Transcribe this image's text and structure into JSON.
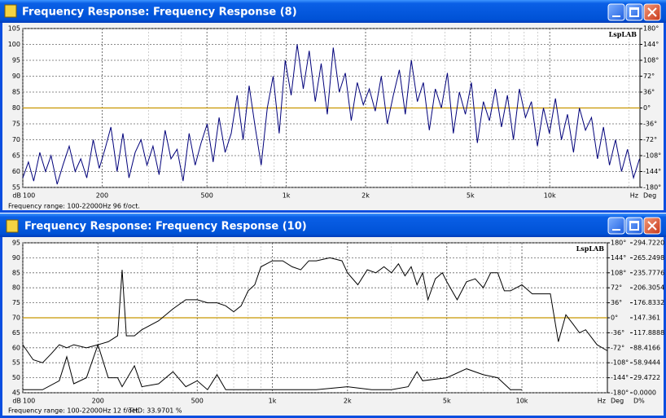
{
  "windows": [
    {
      "title": "Frequency Response: Frequency Response (8)"
    },
    {
      "title": "Frequency Response: Frequency Response (10)"
    }
  ],
  "chart_data": [
    {
      "type": "line",
      "xscale": "log",
      "xlim": [
        100,
        22000
      ],
      "xticks": [
        100,
        200,
        500,
        {
          "value": 1000,
          "label": "1k"
        },
        {
          "value": 2000,
          "label": "2k"
        },
        {
          "value": 5000,
          "label": "5k"
        },
        {
          "value": 10000,
          "label": "10k"
        }
      ],
      "ylim": [
        55,
        105
      ],
      "yticks": [
        55,
        60,
        65,
        70,
        75,
        80,
        85,
        90,
        95,
        100,
        105
      ],
      "y2lim": [
        -180,
        180
      ],
      "y2ticks": [
        {
          "value": -180,
          "label": "-180°"
        },
        {
          "value": -144,
          "label": "-144°"
        },
        {
          "value": -108,
          "label": "-108°"
        },
        {
          "value": -72,
          "label": "-72°"
        },
        {
          "value": -36,
          "label": "-36°"
        },
        {
          "value": 0,
          "label": "0°"
        },
        {
          "value": 36,
          "label": "36°"
        },
        {
          "value": 72,
          "label": "72°"
        },
        {
          "value": 108,
          "label": "108°"
        },
        {
          "value": 144,
          "label": "144°"
        },
        {
          "value": 180,
          "label": "180°"
        }
      ],
      "x_unit": "Hz",
      "y_unit": "dB",
      "y2_unit": "Deg",
      "y2_unit_color": "#d08000",
      "grid": true,
      "reference_line": {
        "axis": "y2",
        "value": 0,
        "color": "#c89600"
      },
      "watermark": "LspLAB",
      "footer": "Frequency range: 100-22000Hz  96 f/oct.",
      "series": [
        {
          "color": "#00007a",
          "x": [
            100,
            105,
            110,
            116,
            122,
            128,
            135,
            142,
            150,
            158,
            166,
            175,
            185,
            195,
            205,
            216,
            228,
            240,
            253,
            267,
            281,
            296,
            312,
            329,
            347,
            365,
            385,
            406,
            428,
            451,
            475,
            501,
            528,
            556,
            586,
            618,
            651,
            686,
            723,
            762,
            803,
            847,
            892,
            940,
            991,
            1044,
            1100,
            1160,
            1222,
            1288,
            1357,
            1431,
            1508,
            1589,
            1675,
            1765,
            1860,
            1960,
            2066,
            2177,
            2295,
            2418,
            2549,
            2686,
            2831,
            2983,
            3144,
            3314,
            3492,
            3680,
            3879,
            4088,
            4308,
            4540,
            4785,
            5043,
            5314,
            5601,
            5902,
            6220,
            6556,
            6909,
            7281,
            7673,
            8087,
            8522,
            8982,
            9466,
            9975,
            10513,
            11080,
            11677,
            12306,
            12969,
            13668,
            14404,
            15180,
            15998,
            16860,
            17768,
            18726,
            19735,
            20798,
            21918
          ],
          "values": [
            58,
            63,
            57,
            66,
            60,
            65,
            56,
            62,
            68,
            60,
            64,
            58,
            70,
            61,
            67,
            74,
            60,
            72,
            58,
            66,
            70,
            62,
            68,
            59,
            73,
            64,
            67,
            57,
            72,
            62,
            69,
            75,
            63,
            77,
            66,
            72,
            84,
            70,
            87,
            74,
            62,
            80,
            90,
            72,
            95,
            84,
            100,
            86,
            98,
            82,
            94,
            78,
            99,
            85,
            91,
            76,
            88,
            81,
            86,
            79,
            90,
            75,
            84,
            92,
            78,
            95,
            82,
            88,
            73,
            86,
            80,
            91,
            72,
            85,
            78,
            88,
            69,
            82,
            76,
            86,
            74,
            84,
            70,
            86,
            77,
            82,
            68,
            80,
            72,
            83,
            70,
            78,
            66,
            80,
            73,
            77,
            64,
            74,
            62,
            70,
            60,
            67,
            58,
            64
          ]
        }
      ]
    },
    {
      "type": "line",
      "xscale": "log",
      "xlim": [
        100,
        22000
      ],
      "xticks": [
        100,
        200,
        500,
        {
          "value": 1000,
          "label": "1k"
        },
        {
          "value": 2000,
          "label": "2k"
        },
        {
          "value": 5000,
          "label": "5k"
        },
        {
          "value": 10000,
          "label": "10k"
        }
      ],
      "ylim": [
        45,
        95
      ],
      "yticks": [
        45,
        50,
        55,
        60,
        65,
        70,
        75,
        80,
        85,
        90,
        95
      ],
      "y2lim": [
        -180,
        180
      ],
      "y2ticks": [
        {
          "value": -180,
          "label": "-180°"
        },
        {
          "value": -144,
          "label": "-144°"
        },
        {
          "value": -108,
          "label": "-108°"
        },
        {
          "value": -72,
          "label": "-72°"
        },
        {
          "value": -36,
          "label": "-36°"
        },
        {
          "value": 0,
          "label": "0°"
        },
        {
          "value": 36,
          "label": "36°"
        },
        {
          "value": 72,
          "label": "72°"
        },
        {
          "value": 108,
          "label": "108°"
        },
        {
          "value": 144,
          "label": "144°"
        },
        {
          "value": 180,
          "label": "180°"
        }
      ],
      "y3lim": [
        0,
        294.722
      ],
      "y3ticks": [
        {
          "value": 0,
          "label": "0.0000"
        },
        29.4722,
        58.9444,
        88.4166,
        117.8888,
        147.361,
        {
          "value": 176.8332,
          "label": "176.8332"
        },
        206.3054,
        235.7776,
        265.2498,
        {
          "value": 294.722,
          "label": "294.7220"
        }
      ],
      "x_unit": "Hz",
      "y_unit": "dB",
      "y2_unit": "Deg",
      "y2_unit_color": "#d08000",
      "y3_unit": "D%",
      "y3_unit_color": "#0000c0",
      "grid": true,
      "reference_line": {
        "axis": "y2",
        "value": 0,
        "color": "#c89600"
      },
      "watermark": "LspLAB",
      "footer": "Frequency range: 100-22000Hz  12 f/oct.",
      "footer_extra": "THD: 33.9701 %",
      "series": [
        {
          "color": "#000000",
          "x": [
            100,
            110,
            120,
            130,
            140,
            150,
            160,
            180,
            200,
            220,
            240,
            250,
            260,
            280,
            300,
            350,
            400,
            450,
            500,
            550,
            600,
            650,
            700,
            750,
            800,
            850,
            900,
            1000,
            1100,
            1200,
            1300,
            1400,
            1500,
            1700,
            1900,
            2000,
            2200,
            2400,
            2600,
            2800,
            3000,
            3200,
            3400,
            3600,
            3800,
            4000,
            4200,
            4500,
            4800,
            5000,
            5500,
            6000,
            6500,
            7000,
            7500,
            8000,
            8500,
            9000,
            10000,
            11000,
            12000,
            13000,
            14000,
            15000,
            16000,
            17000,
            18000,
            20000,
            22000
          ],
          "values": [
            61,
            56,
            55,
            58,
            61,
            60,
            61,
            60,
            61,
            62,
            64,
            86,
            64,
            64,
            66,
            69,
            73,
            76,
            76,
            75,
            75,
            74,
            72,
            74,
            79,
            81,
            87,
            89,
            89,
            87,
            86,
            89,
            89,
            90,
            89,
            85,
            81,
            86,
            85,
            87,
            85,
            88,
            84,
            87,
            81,
            85,
            76,
            83,
            85,
            82,
            76,
            82,
            83,
            80,
            85,
            85,
            79,
            79,
            81,
            78,
            78,
            78,
            62,
            71,
            68,
            65,
            66,
            61,
            59
          ]
        },
        {
          "color": "#000000",
          "x": [
            100,
            120,
            140,
            150,
            160,
            180,
            200,
            220,
            240,
            250,
            280,
            300,
            350,
            400,
            450,
            500,
            550,
            600,
            650,
            700,
            800,
            900,
            1000,
            1200,
            1500,
            2000,
            2500,
            3000,
            3500,
            3800,
            4000,
            5000,
            6000,
            7000,
            8000,
            9000,
            10000
          ],
          "values": [
            46,
            46,
            49,
            57,
            48,
            50,
            61,
            50,
            50,
            47,
            54,
            47,
            48,
            52,
            47,
            49,
            46,
            51,
            46,
            46,
            46,
            46,
            46,
            46,
            46,
            47,
            46,
            46,
            47,
            52,
            49,
            50,
            53,
            51,
            50,
            46,
            46
          ]
        }
      ]
    }
  ]
}
